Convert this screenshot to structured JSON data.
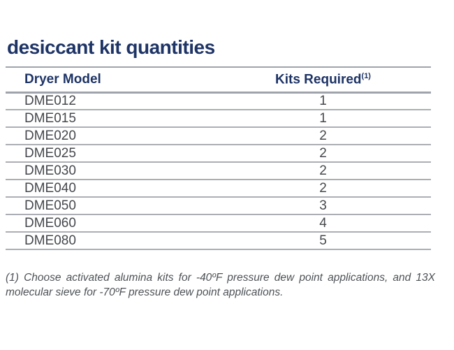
{
  "page": {
    "title": "desiccant kit quantities"
  },
  "table": {
    "columns": {
      "model_label": "Dryer Model",
      "kits_label": "Kits Required",
      "kits_superscript": "(1)"
    },
    "rows": [
      {
        "model": "DME012",
        "kits": "1"
      },
      {
        "model": "DME015",
        "kits": "1"
      },
      {
        "model": "DME020",
        "kits": "2"
      },
      {
        "model": "DME025",
        "kits": "2"
      },
      {
        "model": "DME030",
        "kits": "2"
      },
      {
        "model": "DME040",
        "kits": "2"
      },
      {
        "model": "DME050",
        "kits": "3"
      },
      {
        "model": "DME060",
        "kits": "4"
      },
      {
        "model": "DME080",
        "kits": "5"
      }
    ]
  },
  "footnote": "(1) Choose activated alumina kits for -40ºF pressure dew point applications, and 13X molecular sieve for -70ºF pressure dew point applications.",
  "colors": {
    "accent_navy": "#1e3466",
    "body_text": "#45484c",
    "line_gray": "#a6aab1",
    "footnote_gray": "#4e5256",
    "background": "#ffffff"
  }
}
